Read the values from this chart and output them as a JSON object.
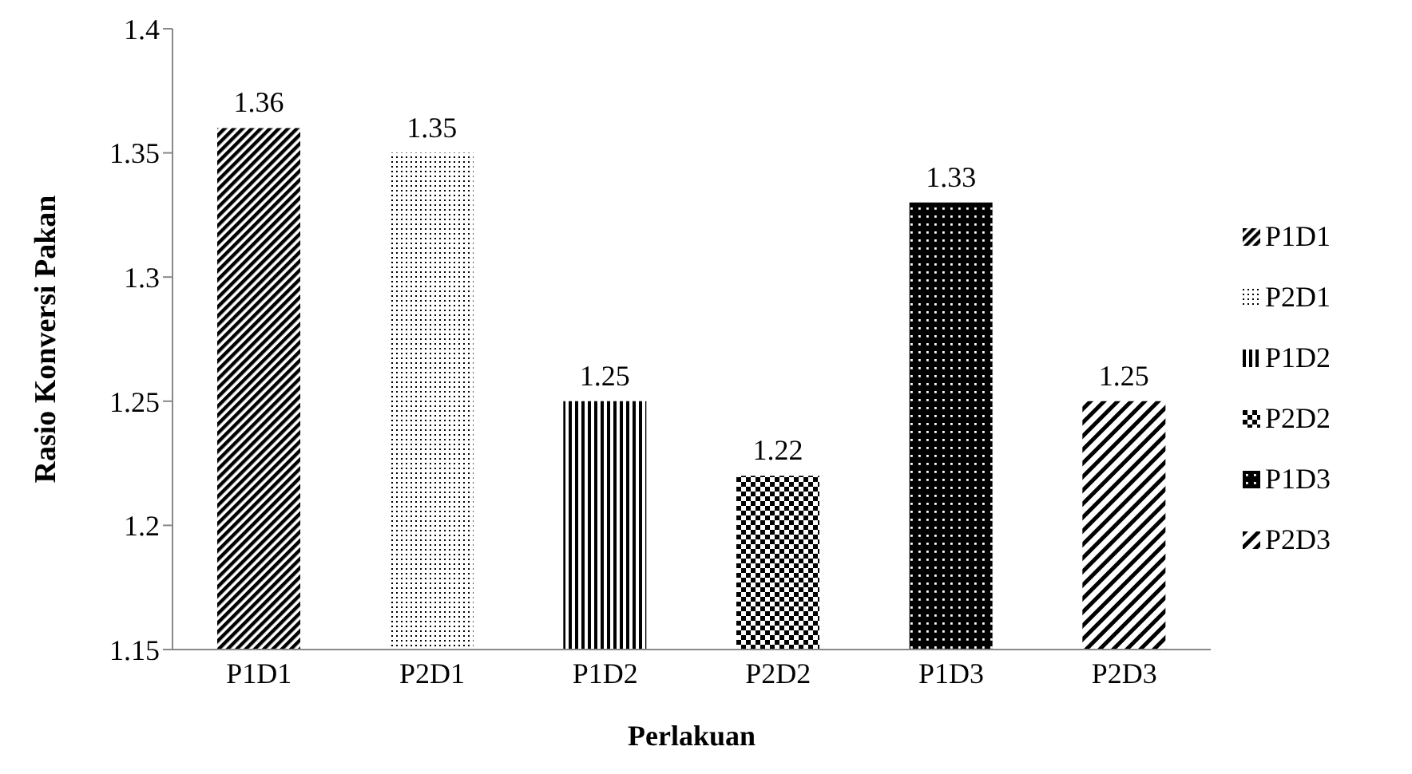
{
  "chart_data": {
    "type": "bar",
    "xlabel": "Perlakuan",
    "ylabel": "Rasio Konversi Pakan",
    "categories": [
      "P1D1",
      "P2D1",
      "P1D2",
      "P2D2",
      "P1D3",
      "P2D3"
    ],
    "series": [
      {
        "name": "P1D1",
        "color": "#000000",
        "values": [
          1.36,
          null,
          null,
          null,
          null,
          null
        ]
      },
      {
        "name": "P2D1",
        "color": "#000000",
        "values": [
          null,
          1.35,
          null,
          null,
          null,
          null
        ]
      },
      {
        "name": "P1D2",
        "color": "#000000",
        "values": [
          null,
          null,
          1.25,
          null,
          null,
          null
        ]
      },
      {
        "name": "P2D2",
        "color": "#000000",
        "values": [
          null,
          null,
          null,
          1.22,
          null,
          null
        ]
      },
      {
        "name": "P1D3",
        "color": "#000000",
        "values": [
          null,
          null,
          null,
          null,
          1.33,
          null
        ]
      },
      {
        "name": "P2D3",
        "color": "#000000",
        "values": [
          null,
          null,
          null,
          null,
          null,
          1.25
        ]
      }
    ],
    "ylim": [
      1.15,
      1.4
    ],
    "yticks": [
      1.15,
      1.2,
      1.25,
      1.3,
      1.35,
      1.4
    ],
    "data_labels": true,
    "grid": false,
    "legend": "right"
  }
}
